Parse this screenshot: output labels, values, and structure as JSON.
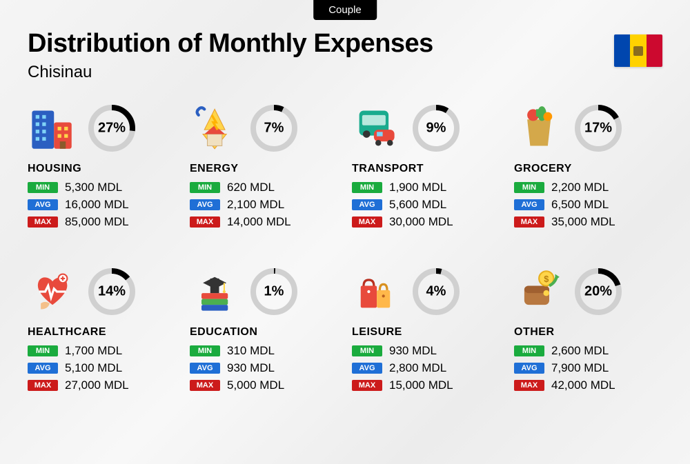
{
  "tab_label": "Couple",
  "title": "Distribution of Monthly Expenses",
  "subtitle": "Chisinau",
  "currency_suffix": "MDL",
  "flag": {
    "stripes": [
      "#0046ae",
      "#ffd200",
      "#cc092f"
    ],
    "has_emblem": true
  },
  "badge_labels": {
    "min": "MIN",
    "avg": "AVG",
    "max": "MAX"
  },
  "badge_colors": {
    "min": "#1aab3e",
    "avg": "#1f6fd6",
    "max": "#cc1b1b"
  },
  "donut": {
    "track_color": "#d0d0d0",
    "fill_color": "#000000",
    "stroke_width": 8,
    "radius": 30
  },
  "categories": [
    {
      "key": "housing",
      "label": "HOUSING",
      "percent": 27,
      "min": "5,300",
      "avg": "16,000",
      "max": "85,000",
      "icon": "building-icon"
    },
    {
      "key": "energy",
      "label": "ENERGY",
      "percent": 7,
      "min": "620",
      "avg": "2,100",
      "max": "14,000",
      "icon": "energy-icon"
    },
    {
      "key": "transport",
      "label": "TRANSPORT",
      "percent": 9,
      "min": "1,900",
      "avg": "5,600",
      "max": "30,000",
      "icon": "transport-icon"
    },
    {
      "key": "grocery",
      "label": "GROCERY",
      "percent": 17,
      "min": "2,200",
      "avg": "6,500",
      "max": "35,000",
      "icon": "grocery-icon"
    },
    {
      "key": "healthcare",
      "label": "HEALTHCARE",
      "percent": 14,
      "min": "1,700",
      "avg": "5,100",
      "max": "27,000",
      "icon": "healthcare-icon"
    },
    {
      "key": "education",
      "label": "EDUCATION",
      "percent": 1,
      "min": "310",
      "avg": "930",
      "max": "5,000",
      "icon": "education-icon"
    },
    {
      "key": "leisure",
      "label": "LEISURE",
      "percent": 4,
      "min": "930",
      "avg": "2,800",
      "max": "15,000",
      "icon": "leisure-icon"
    },
    {
      "key": "other",
      "label": "OTHER",
      "percent": 20,
      "min": "2,600",
      "avg": "7,900",
      "max": "42,000",
      "icon": "other-icon"
    }
  ],
  "icon_svgs": {
    "building-icon": "<rect x='6' y='8' width='30' height='52' rx='3' fill='#2b5fc1'/><rect x='11' y='14' width='5' height='5' fill='#7fd3f7'/><rect x='20' y='14' width='5' height='5' fill='#7fd3f7'/><rect x='11' y='24' width='5' height='5' fill='#7fd3f7'/><rect x='20' y='24' width='5' height='5' fill='#7fd3f7'/><rect x='11' y='34' width='5' height='5' fill='#7fd3f7'/><rect x='20' y='34' width='5' height='5' fill='#7fd3f7'/><rect x='11' y='44' width='5' height='5' fill='#7fd3f7'/><rect x='20' y='44' width='5' height='5' fill='#7fd3f7'/><rect x='36' y='24' width='24' height='36' rx='3' fill='#e84a3c'/><rect x='41' y='30' width='5' height='5' fill='#ffd54a'/><rect x='50' y='30' width='5' height='5' fill='#ffd54a'/><rect x='41' y='40' width='5' height='5' fill='#ffd54a'/><rect x='50' y='40' width='5' height='5' fill='#ffd54a'/><rect x='44' y='50' width='8' height='10' fill='#8a5a2b'/>",
    "energy-icon": "<polygon points='34,6 20,34 30,34 26,40 18,40 34,60 50,40 42,40 38,34 48,34' fill='#ffd54a' stroke='#e8a030' stroke-width='1'/><path d='M12,14 Q8,10 12,6 Q16,2 20,6' stroke='#2b5fc1' stroke-width='4' fill='none' stroke-linecap='round'/><rect x='24' y='40' width='20' height='16' fill='#f0e0c0' stroke='#d0b080' stroke-width='1'/><polygon points='20,40 34,28 48,40' fill='#e84a3c'/><path d='M30,14 L36,24 L32,24 L38,34' stroke='#ffb300' stroke-width='3' fill='none'/>",
    "transport-icon": "<rect x='10' y='8' width='40' height='34' rx='6' fill='#1aab8e'/><rect x='14' y='14' width='32' height='14' rx='2' fill='#b8e8de'/><circle cx='20' cy='40' r='5' fill='#333'/><circle cx='40' cy='40' r='5' fill='#333'/><rect x='30' y='34' width='28' height='16' rx='6' fill='#e84a3c'/><rect x='34' y='37' width='8' height='6' fill='#7fd3f7'/><circle cx='36' cy='52' r='4' fill='#333'/><circle cx='52' cy='52' r='4' fill='#333'/>",
    "grocery-icon": "<path d='M18,20 L50,20 L46,56 L22,56 Z' fill='#d4a84a'/><path d='M24,20 Q24,10 34,10 Q44,10 44,20' stroke='#8a6020' stroke-width='3' fill='none'/><circle cx='26' cy='14' r='8' fill='#e84a3c'/><ellipse cx='38' cy='12' rx='6' ry='10' fill='#4caf50'/><circle cx='46' cy='16' r='6' fill='#ff9800'/><rect x='30' y='6' width='4' height='10' fill='#4caf50'/>",
    "healthcare-icon": "<path d='M34,18 C28,10 14,10 14,24 C14,36 34,50 34,50 C34,50 54,36 54,24 C54,10 40,10 34,18 Z' fill='#e84a3c'/><path d='M16,32 L24,32 L28,24 L32,40 L36,28 L40,32 L52,32' stroke='#fff' stroke-width='3' fill='none'/><circle cx='48' cy='14' r='6' fill='#fff' stroke='#e84a3c' stroke-width='2'/><path d='M48,11 L48,17 M45,14 L51,14' stroke='#e84a3c' stroke-width='2'/><path d='M18,48 Q24,44 30,48 Q28,56 18,56 Z' fill='#f4c08a'/>",
    "education-icon": "<rect x='16' y='34' width='36' height='8' rx='2' fill='#e84a3c'/><rect x='16' y='42' width='36' height='8' rx='2' fill='#4caf50'/><rect x='16' y='50' width='36' height='8' rx='2' fill='#2b5fc1'/><rect x='28' y='14' width='12' height='20' fill='#333'/><polygon points='18,20 34,12 50,20 34,28' fill='#333'/><rect x='46' y='20' width='2' height='12' fill='#ffd54a'/><circle cx='47' cy='32' r='2' fill='#ffd54a'/>",
    "leisure-icon": "<rect x='12' y='24' width='22' height='30' rx='2' fill='#e84a3c'/><path d='M16,24 Q16,16 23,16 Q30,16 30,24' stroke='#b83020' stroke-width='3' fill='none'/><rect x='34' y='30' width='18' height='24' rx='2' fill='#ffb84a'/><path d='M38,30 Q38,22 43,22 Q48,22 48,30' stroke='#d89020' stroke-width='3' fill='none'/><circle cx='23' cy='32' r='2' fill='#fff'/><circle cx='43' cy='38' r='2' fill='#b86020'/>",
    "other-icon": "<rect x='14' y='24' width='34' height='26' rx='6' fill='#b87840'/><rect x='14' y='24' width='34' height='10' rx='6' fill='#a06030'/><circle cx='44' cy='34' r='4' fill='#ffd54a'/><circle cx='44' cy='14' r='10' fill='#ffd54a' stroke='#e8b020' stroke-width='2'/><text x='44' y='19' font-size='12' text-anchor='middle' fill='#b88010' font-weight='bold'>$</text><path d='M48,24 Q56,20 58,12' stroke='#4caf50' stroke-width='4' fill='none'/><polygon points='56,8 62,12 56,16' fill='#4caf50'/>"
  }
}
